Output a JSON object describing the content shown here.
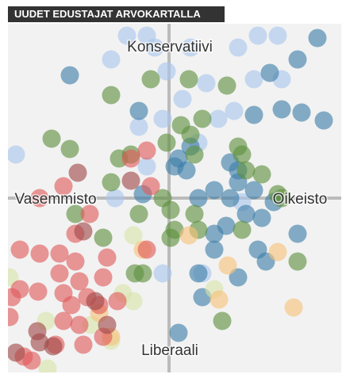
{
  "chart_data": {
    "type": "scatter",
    "title": "UUDET EDUSTAJAT ARVOKARTALLA",
    "axis_labels": {
      "top": "Konservatiivi",
      "bottom": "Liberaali",
      "left": "Vasemmisto",
      "right": "Oikeisto"
    },
    "xlim": [
      -203,
      217
    ],
    "ylim": [
      -220,
      220
    ],
    "series": [
      {
        "color": "#a9c6ee",
        "x": [
          -73,
          -53,
          -28,
          -3,
          17,
          -8,
          -38,
          -18,
          27,
          87,
          112,
          137,
          142,
          107,
          47,
          82,
          62,
          -193,
          -68,
          -8,
          42,
          37,
          -28,
          92
        ],
        "values": [
          175,
          205,
          205,
          160,
          125,
          100,
          90,
          190,
          190,
          190,
          205,
          205,
          150,
          150,
          145,
          110,
          100,
          55,
          0,
          -95,
          -95,
          70,
          40,
          -5
        ]
      },
      {
        "color": "#3d7ea8",
        "x": [
          -125,
          -38,
          12,
          22,
          77,
          87,
          107,
          77,
          57,
          37,
          97,
          117,
          132,
          162,
          127,
          142,
          167,
          195,
          187,
          107,
          162,
          57,
          72,
          57,
          112,
          122,
          87,
          42,
          12,
          37,
          27,
          7,
          87,
          -33
        ],
        "values": [
          155,
          110,
          50,
          35,
          45,
          20,
          10,
          0,
          10,
          0,
          -20,
          -25,
          -5,
          175,
          158,
          112,
          108,
          98,
          202,
          105,
          -45,
          -45,
          -35,
          -65,
          -65,
          -80,
          -100,
          -125,
          -170,
          -95,
          65,
          40,
          35,
          5
        ]
      },
      {
        "color": "#5e8f3e",
        "x": [
          -73,
          -23,
          25,
          73,
          15,
          42,
          27,
          32,
          -148,
          -125,
          -63,
          -48,
          -73,
          87,
          92,
          97,
          117,
          137,
          -8,
          2,
          32,
          37,
          7,
          -38,
          -118,
          -83,
          -33,
          -43,
          162,
          67,
          142,
          92,
          2,
          -3
        ],
        "values": [
          130,
          150,
          150,
          142,
          92,
          100,
          80,
          55,
          75,
          62,
          50,
          55,
          20,
          65,
          55,
          35,
          30,
          5,
          0,
          -15,
          -20,
          -40,
          -40,
          -20,
          -20,
          -50,
          -95,
          -95,
          -80,
          -155,
          0,
          -40,
          -50,
          70
        ]
      },
      {
        "color": "#d8e4aa",
        "x": [
          -45,
          -58,
          -45,
          -155,
          -98,
          -73,
          57,
          -201,
          -153
        ],
        "values": [
          -47,
          -120,
          -130,
          -155,
          -160,
          -180,
          -115,
          -100,
          -215
        ]
      },
      {
        "color": "#f7c27a",
        "x": [
          25,
          -33,
          74,
          137,
          63,
          157,
          -73,
          -88
        ],
        "values": [
          -47,
          -65,
          -85,
          -68,
          -128,
          -138,
          -175,
          -145
        ]
      },
      {
        "color": "#e05a5a",
        "x": [
          -28,
          -48,
          -23,
          -133,
          -163,
          -100,
          -118,
          -188,
          -163,
          -138,
          -118,
          -78,
          -28,
          -138,
          -113,
          -83,
          -188,
          -165,
          -133,
          -103,
          -88,
          -65,
          -123,
          -198,
          -201,
          -133,
          -83,
          -108,
          -143,
          -183,
          -173,
          -113
        ],
        "values": [
          60,
          50,
          15,
          15,
          0,
          -20,
          -45,
          -65,
          -70,
          -70,
          -80,
          -75,
          -65,
          -95,
          -105,
          -100,
          -115,
          -118,
          -120,
          -125,
          -135,
          -130,
          -135,
          -125,
          -150,
          -155,
          -175,
          -185,
          -185,
          -200,
          -205,
          -160
        ]
      },
      {
        "color": "#a04848",
        "x": [
          -115,
          -48,
          -108,
          -93,
          -78,
          -166,
          -146,
          -193,
          -163
        ],
        "values": [
          32,
          22,
          -42,
          -130,
          -160,
          -168,
          -187,
          -195,
          -182
        ]
      }
    ]
  }
}
